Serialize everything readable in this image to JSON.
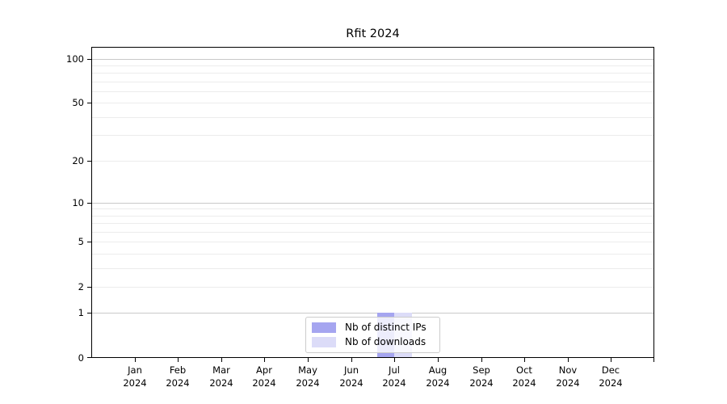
{
  "chart_data": {
    "type": "bar",
    "title": "Rfit 2024",
    "categories": [
      "Jan 2024",
      "Feb 2024",
      "Mar 2024",
      "Apr 2024",
      "May 2024",
      "Jun 2024",
      "Jul 2024",
      "Aug 2024",
      "Sep 2024",
      "Oct 2024",
      "Nov 2024",
      "Dec 2024"
    ],
    "x_tick_month_line": [
      "Jan",
      "Feb",
      "Mar",
      "Apr",
      "May",
      "Jun",
      "Jul",
      "Aug",
      "Sep",
      "Oct",
      "Nov",
      "Dec"
    ],
    "x_tick_year_line": "2024",
    "series": [
      {
        "name": "Nb of distinct IPs",
        "color": "#a5a5f0",
        "values": [
          0,
          0,
          0,
          0,
          0,
          0,
          1,
          0,
          0,
          0,
          0,
          0
        ]
      },
      {
        "name": "Nb of downloads",
        "color": "#dcdcf8",
        "values": [
          0,
          0,
          0,
          0,
          0,
          0,
          1,
          0,
          0,
          0,
          0,
          0
        ]
      }
    ],
    "y_scale": "log1p",
    "y_ticks": [
      0,
      1,
      2,
      5,
      10,
      20,
      50,
      100
    ],
    "y_minor_gridlines": [
      2,
      3,
      4,
      5,
      6,
      7,
      8,
      9,
      20,
      30,
      40,
      50,
      60,
      70,
      80,
      90
    ],
    "y_major_gridlines": [
      1,
      10,
      100
    ],
    "ylim": [
      0,
      119
    ],
    "xlabel": "",
    "ylabel": "",
    "grid": "horizontal",
    "legend_position": "lower center"
  },
  "colors": {
    "axis": "#000000",
    "grid_minor": "#ececec",
    "grid_major": "#c9c9c9",
    "legend_border": "#cccccc",
    "background": "#ffffff"
  }
}
